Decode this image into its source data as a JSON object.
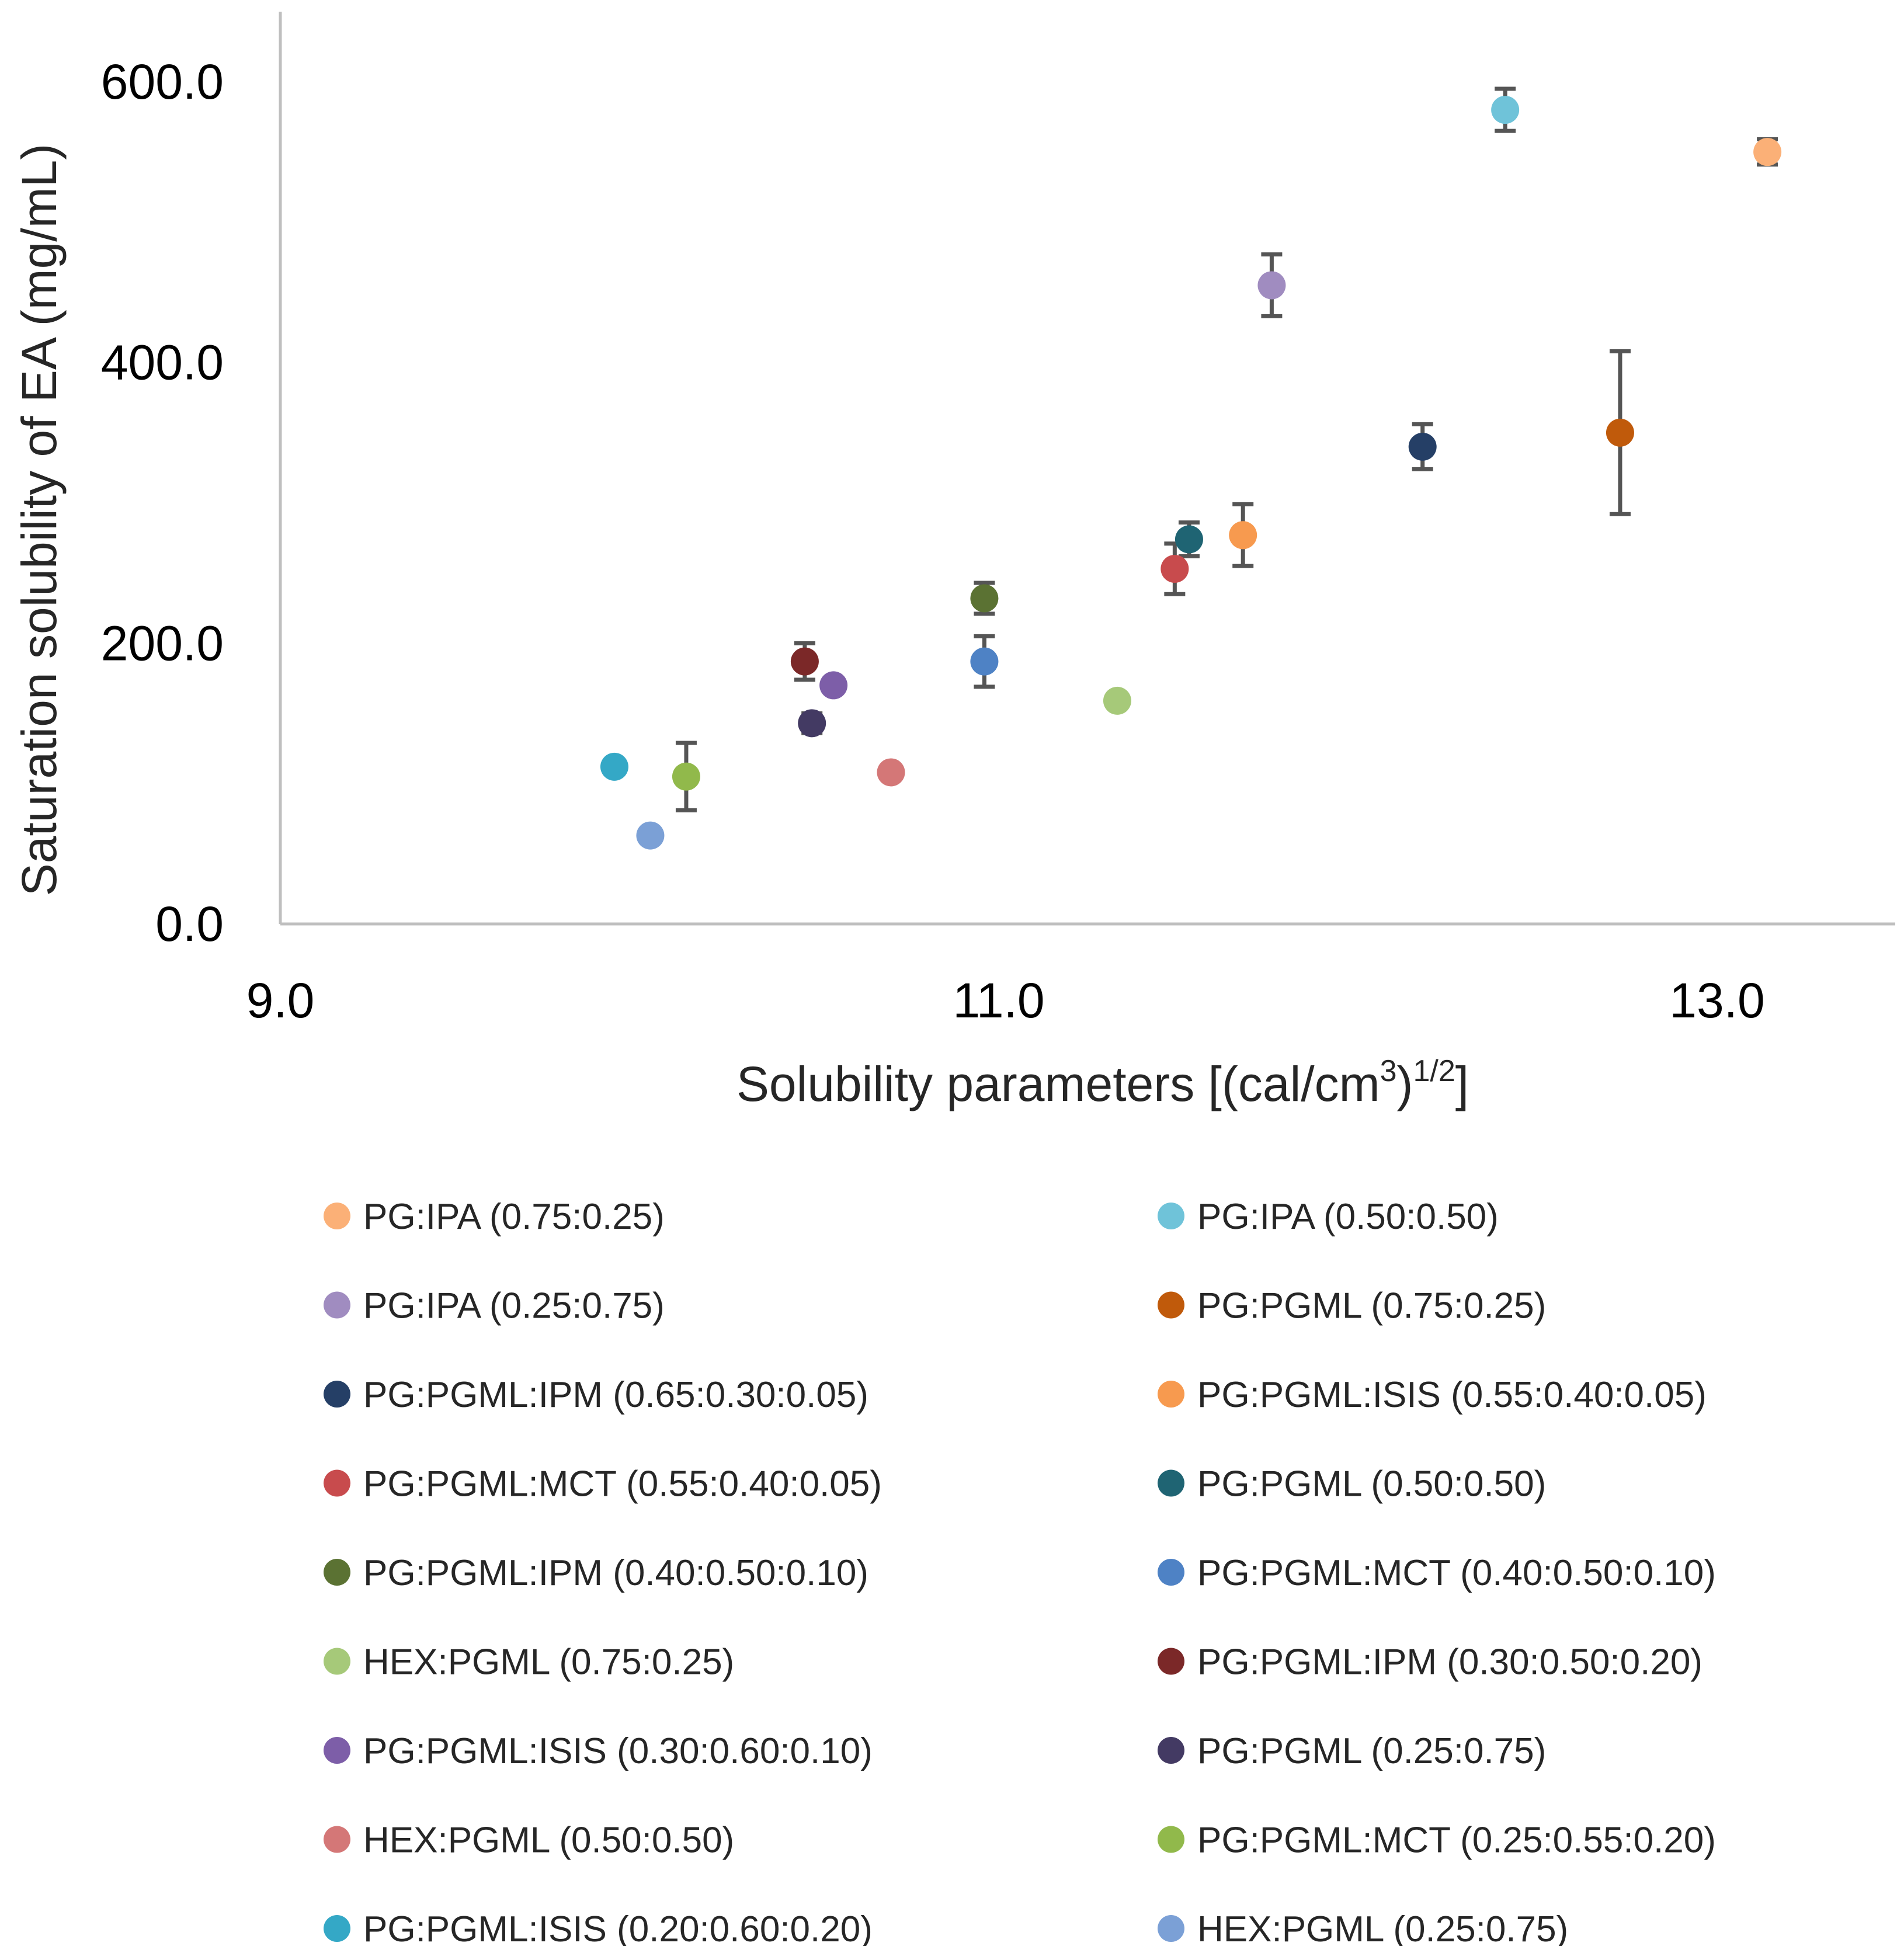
{
  "chart_data": {
    "type": "scatter",
    "xlabel": {
      "base": "Solubility parameters [(cal/cm",
      "sup1": "3",
      "mid": ")",
      "sup2": "1/2",
      "end": "]"
    },
    "ylabel": "Saturation solubility of EA (mg/mL)",
    "xlim": [
      9.0,
      13.5
    ],
    "ylim": [
      0.0,
      600.0
    ],
    "x_ticks": [
      9.0,
      11.0,
      13.0
    ],
    "x_tick_labels": [
      "9.0",
      "11.0",
      "13.0"
    ],
    "y_ticks": [
      0.0,
      200.0,
      400.0,
      600.0
    ],
    "y_tick_labels": [
      "0.0",
      "200.0",
      "400.0",
      "600.0"
    ],
    "grid": false,
    "legend_position": "bottom",
    "series": [
      {
        "name": "PG:IPA (0.75:0.25)",
        "color": "#fbb077",
        "x": 13.14,
        "y": 550,
        "err": 9
      },
      {
        "name": "PG:IPA (0.50:0.50)",
        "color": "#6fc3d9",
        "x": 12.41,
        "y": 580,
        "err": 15
      },
      {
        "name": "PG:IPA (0.25:0.75)",
        "color": "#a08cc0",
        "x": 11.76,
        "y": 455,
        "err": 22
      },
      {
        "name": "PG:PGML (0.75:0.25)",
        "color": "#c05a0b",
        "x": 12.73,
        "y": 350,
        "err": 58
      },
      {
        "name": "PG:PGML:IPM (0.65:0.30:0.05)",
        "color": "#253f66",
        "x": 12.18,
        "y": 340,
        "err": 16
      },
      {
        "name": "PG:PGML:ISIS (0.55:0.40:0.05)",
        "color": "#f79a4f",
        "x": 11.68,
        "y": 277,
        "err": 22
      },
      {
        "name": "PG:PGML:MCT (0.55:0.40:0.05)",
        "color": "#c84b4d",
        "x": 11.49,
        "y": 253,
        "err": 18
      },
      {
        "name": "PG:PGML (0.50:0.50)",
        "color": "#1f6473",
        "x": 11.53,
        "y": 274,
        "err": 12
      },
      {
        "name": "PG:PGML:IPM (0.40:0.50:0.10)",
        "color": "#5b7233",
        "x": 10.96,
        "y": 232,
        "err": 11
      },
      {
        "name": "PG:PGML:MCT (0.40:0.50:0.10)",
        "color": "#4e82c5",
        "x": 10.96,
        "y": 187,
        "err": 18
      },
      {
        "name": "HEX:PGML (0.75:0.25)",
        "color": "#a6c979",
        "x": 11.33,
        "y": 159,
        "err": 0
      },
      {
        "name": "PG:PGML:IPM (0.30:0.50:0.20)",
        "color": "#7b2828",
        "x": 10.46,
        "y": 187,
        "err": 13
      },
      {
        "name": "PG:PGML:ISIS (0.30:0.60:0.10)",
        "color": "#7d5ea8",
        "x": 10.54,
        "y": 170,
        "err": 0
      },
      {
        "name": "PG:PGML (0.25:0.75)",
        "color": "#433a63",
        "x": 10.48,
        "y": 143,
        "err": 7
      },
      {
        "name": "HEX:PGML (0.50:0.50)",
        "color": "#d47777",
        "x": 10.7,
        "y": 108,
        "err": 0
      },
      {
        "name": "PG:PGML:MCT (0.25:0.55:0.20)",
        "color": "#91b94b",
        "x": 10.13,
        "y": 105,
        "err": 24
      },
      {
        "name": "PG:PGML:ISIS (0.20:0.60:0.20)",
        "color": "#34a8c6",
        "x": 9.93,
        "y": 112,
        "err": 0
      },
      {
        "name": "HEX:PGML (0.25:0.75)",
        "color": "#7ba0d6",
        "x": 10.03,
        "y": 63,
        "err": 0
      }
    ]
  }
}
